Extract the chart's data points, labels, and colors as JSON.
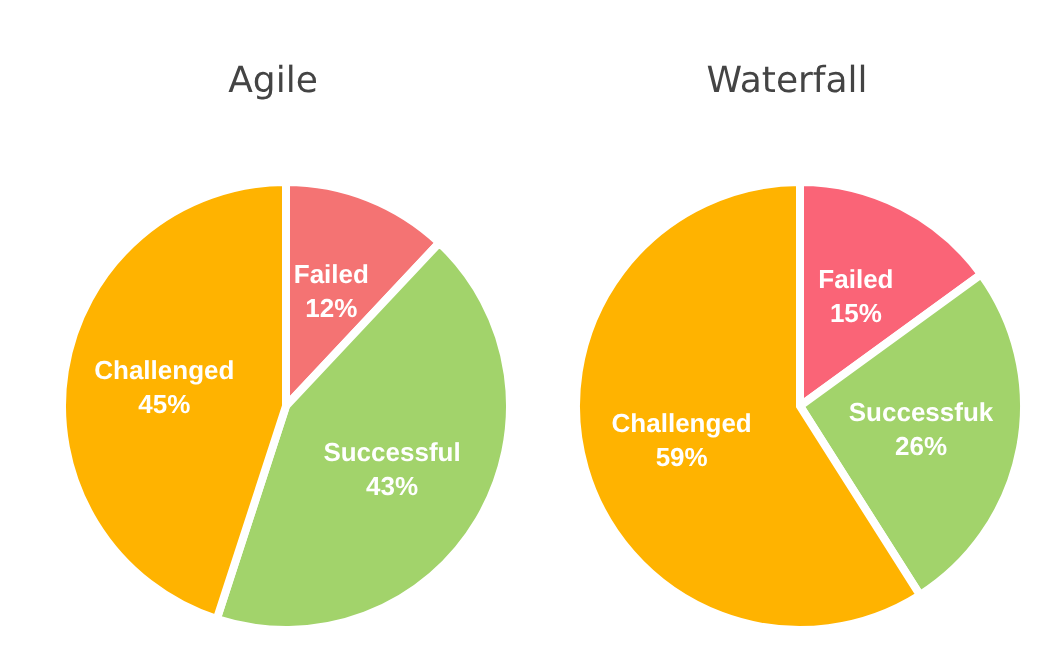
{
  "chart_data": [
    {
      "type": "pie",
      "title": "Agile",
      "categories": [
        "Failed",
        "Successful",
        "Challenged"
      ],
      "values": [
        12,
        43,
        45
      ],
      "value_labels": [
        "12%",
        "43%",
        "45%"
      ],
      "colors": [
        "#f47373",
        "#a2d36b",
        "#ffb300"
      ]
    },
    {
      "type": "pie",
      "title": "Waterfall",
      "categories": [
        "Failed",
        "Successfuk",
        "Challenged"
      ],
      "values": [
        15,
        26,
        59
      ],
      "value_labels": [
        "15%",
        "26%",
        "59%"
      ],
      "colors": [
        "#fa6477",
        "#a2d36b",
        "#ffb300"
      ]
    }
  ]
}
